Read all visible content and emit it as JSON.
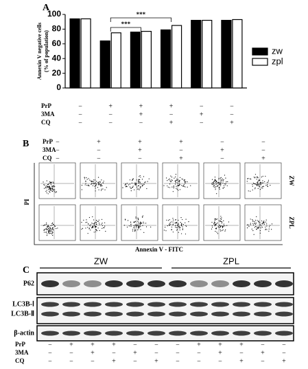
{
  "chart_data": {
    "type": "bar",
    "panel_label": "A",
    "ylabel": [
      "Annexin V negative cells",
      "(% of population)"
    ],
    "categories": [
      null,
      null,
      null,
      null,
      null,
      null
    ],
    "series": [
      {
        "name": "zw",
        "color": "#000000",
        "values": [
          94,
          64,
          76,
          79,
          92,
          92
        ]
      },
      {
        "name": "zpl",
        "color": "#ffffff",
        "values": [
          94,
          75,
          77,
          85,
          92,
          93
        ]
      }
    ],
    "ylim": [
      0,
      100
    ],
    "yticks": [
      0,
      20,
      40,
      60,
      80,
      100
    ],
    "annotations": [
      {
        "text": "***",
        "between": [
          1,
          3
        ]
      },
      {
        "text": "***",
        "between": [
          1,
          2
        ]
      }
    ],
    "treatments": [
      {
        "name": "PrP",
        "signs": [
          "−",
          "+",
          "+",
          "+",
          "−",
          "−"
        ]
      },
      {
        "name": "3MA",
        "signs": [
          "−",
          "−",
          "+",
          "−",
          "+",
          "−"
        ]
      },
      {
        "name": "CQ",
        "signs": [
          "−",
          "−",
          "−",
          "+",
          "−",
          "+"
        ]
      }
    ]
  },
  "panel_b": {
    "label": "B",
    "treatments": [
      {
        "name": "PrP",
        "signs": [
          "−",
          "+",
          "+",
          "+",
          "−",
          "−"
        ]
      },
      {
        "name": "3MA",
        "signs": [
          "−",
          "−",
          "+",
          "−",
          "+",
          "−"
        ]
      },
      {
        "name": "CQ",
        "signs": [
          "−",
          "−",
          "−",
          "+",
          "−",
          "+"
        ]
      }
    ],
    "row_labels": [
      "ZW",
      "ZPL"
    ],
    "y_label": "PI",
    "x_label": "Annexin V - FITC"
  },
  "panel_c": {
    "label": "C",
    "groups": [
      "ZW",
      "ZPL"
    ],
    "rows": [
      "P62",
      "LC3B-Ⅰ",
      "LC3B-Ⅱ",
      "β-actin"
    ],
    "treatments": [
      {
        "name": "PrP",
        "signs": [
          "−",
          "+",
          "+",
          "+",
          "−",
          "−",
          "−",
          "+",
          "+",
          "+",
          "−",
          "−"
        ]
      },
      {
        "name": "3MA",
        "signs": [
          "−",
          "−",
          "+",
          "−",
          "+",
          "−",
          "−",
          "−",
          "+",
          "−",
          "+",
          "−"
        ]
      },
      {
        "name": "CQ",
        "signs": [
          "−",
          "−",
          "−",
          "+",
          "−",
          "+",
          "−",
          "−",
          "−",
          "+",
          "−",
          "+"
        ]
      }
    ]
  }
}
